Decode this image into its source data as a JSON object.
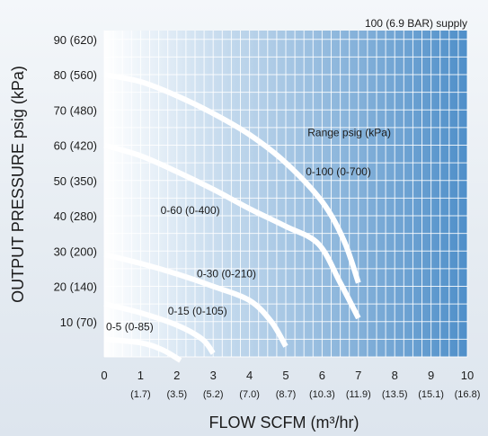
{
  "chart_data": {
    "type": "line",
    "title": "",
    "xlabel": "FLOW SCFM (m³/hr)",
    "ylabel": "OUTPUT PRESSURE psig (kPa)",
    "xlim": [
      0,
      10
    ],
    "ylim": [
      0,
      90
    ],
    "grid": true,
    "plot_gradient": [
      "#ffffff",
      "#4f8fc9"
    ],
    "curve_color": "#ffffff",
    "x_ticks": [
      {
        "value": 0,
        "label": "0",
        "sub": ""
      },
      {
        "value": 1,
        "label": "1",
        "sub": "(1.7)"
      },
      {
        "value": 2,
        "label": "2",
        "sub": "(3.5)"
      },
      {
        "value": 3,
        "label": "3",
        "sub": "(5.2)"
      },
      {
        "value": 4,
        "label": "4",
        "sub": "(7.0)"
      },
      {
        "value": 5,
        "label": "5",
        "sub": "(8.7)"
      },
      {
        "value": 6,
        "label": "6",
        "sub": "(10.3)"
      },
      {
        "value": 7,
        "label": "7",
        "sub": "(11.9)"
      },
      {
        "value": 8,
        "label": "8",
        "sub": "(13.5)"
      },
      {
        "value": 9,
        "label": "9",
        "sub": "(15.1)"
      },
      {
        "value": 10,
        "label": "10",
        "sub": "(16.8)"
      }
    ],
    "y_ticks": [
      {
        "value": 10,
        "label": "10 (70)"
      },
      {
        "value": 20,
        "label": "20 (140)"
      },
      {
        "value": 30,
        "label": "30 (200)"
      },
      {
        "value": 40,
        "label": "40 (280)"
      },
      {
        "value": 50,
        "label": "50 (350)"
      },
      {
        "value": 60,
        "label": "60 (420)"
      },
      {
        "value": 70,
        "label": "70 (480)"
      },
      {
        "value": 80,
        "label": "80 (560)"
      },
      {
        "value": 90,
        "label": "90 (620)"
      }
    ],
    "annotations": [
      {
        "text": "100 (6.9 BAR) supply",
        "x": 10.0,
        "y": 92.5,
        "anchor": "end"
      },
      {
        "text": "Range psig (kPa)",
        "x": 5.6,
        "y": 61.5,
        "anchor": "start"
      }
    ],
    "series": [
      {
        "name": "0-100 (0-700)",
        "label_x": 5.55,
        "label_y": 51.5,
        "points": [
          [
            0,
            80
          ],
          [
            1,
            78
          ],
          [
            2,
            74
          ],
          [
            3,
            69
          ],
          [
            4,
            63
          ],
          [
            5,
            55
          ],
          [
            6,
            44
          ],
          [
            6.6,
            33
          ],
          [
            7.0,
            21
          ]
        ]
      },
      {
        "name": "0-60 (0-400)",
        "label_x": 1.55,
        "label_y": 40.5,
        "points": [
          [
            0,
            60
          ],
          [
            1,
            57
          ],
          [
            2,
            52.5
          ],
          [
            3,
            47.5
          ],
          [
            4,
            42
          ],
          [
            5,
            37
          ],
          [
            5.9,
            32
          ],
          [
            6.5,
            21
          ],
          [
            7.0,
            11
          ]
        ]
      },
      {
        "name": "0-30 (0-210)",
        "label_x": 2.55,
        "label_y": 22.5,
        "points": [
          [
            0,
            29
          ],
          [
            1,
            26.5
          ],
          [
            2,
            23.5
          ],
          [
            3,
            20
          ],
          [
            4,
            16
          ],
          [
            4.6,
            10
          ],
          [
            5.0,
            3
          ]
        ]
      },
      {
        "name": "0-15 (0-105)",
        "label_x": 1.75,
        "label_y": 12.0,
        "points": [
          [
            0,
            15
          ],
          [
            1,
            12.5
          ],
          [
            2,
            9
          ],
          [
            2.7,
            5
          ],
          [
            3.0,
            1
          ]
        ]
      },
      {
        "name": "0-5 (0-85)",
        "label_x": 0.05,
        "label_y": 7.5,
        "points": [
          [
            0,
            5
          ],
          [
            1,
            4
          ],
          [
            1.6,
            2
          ],
          [
            2.1,
            -1
          ]
        ]
      }
    ]
  }
}
